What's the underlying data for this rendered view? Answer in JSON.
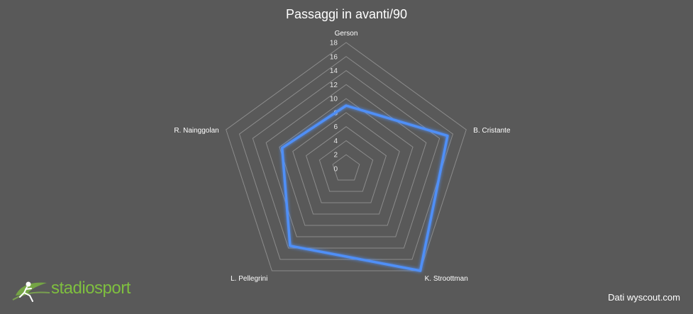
{
  "chart_data": {
    "type": "radar",
    "title": "Passaggi in avanti/90",
    "categories": [
      "Gerson",
      "B. Cristante",
      "K. Stroottman",
      "L. Pellegrini",
      "R. Nainggolan"
    ],
    "series": [
      {
        "values": [
          9,
          15.2,
          18,
          13.6,
          9.6
        ]
      }
    ],
    "rlim": [
      0,
      18
    ],
    "rticks": [
      0,
      2,
      4,
      6,
      8,
      10,
      12,
      14,
      16,
      18
    ],
    "grid": true,
    "series_color": "#4f8ff7",
    "grid_color": "#8c8c8c",
    "background": "#595959"
  },
  "source_text": "Dati wyscout.com",
  "logo": {
    "text": "stadiosport",
    "color": "#7fbf3f"
  }
}
